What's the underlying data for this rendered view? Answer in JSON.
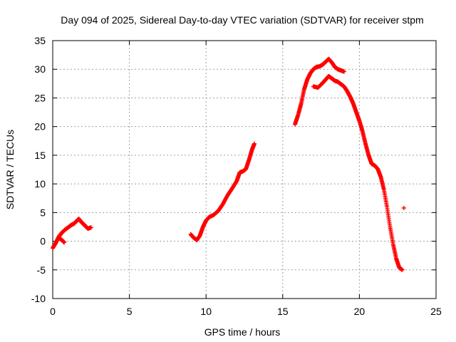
{
  "chart_data": {
    "type": "scatter",
    "title": "Day 094 of 2025, Sidereal Day-to-day VTEC variation (SDTVAR) for receiver stpm",
    "xlabel": "GPS time / hours",
    "ylabel": "SDTVAR / TECUs",
    "xlim": [
      0,
      25
    ],
    "ylim": [
      -10,
      35
    ],
    "xticks": [
      0,
      5,
      10,
      15,
      20,
      25
    ],
    "yticks": [
      -10,
      -5,
      0,
      5,
      10,
      15,
      20,
      25,
      30,
      35
    ],
    "grid": true,
    "marker": "+",
    "marker_color": "#ff0000",
    "series": [
      {
        "name": "SDTVAR",
        "segments": [
          [
            [
              0.0,
              -1.2
            ],
            [
              0.2,
              -0.3
            ],
            [
              0.4,
              0.8
            ],
            [
              0.6,
              1.5
            ],
            [
              0.8,
              2.0
            ],
            [
              1.0,
              2.4
            ],
            [
              1.2,
              2.8
            ],
            [
              1.4,
              3.1
            ],
            [
              1.55,
              3.5
            ],
            [
              1.7,
              3.9
            ],
            [
              1.85,
              3.4
            ],
            [
              2.0,
              3.0
            ],
            [
              2.15,
              2.6
            ],
            [
              2.3,
              2.2
            ],
            [
              2.5,
              2.4
            ]
          ],
          [
            [
              0.45,
              0.5
            ],
            [
              0.6,
              0.2
            ],
            [
              0.75,
              -0.2
            ]
          ],
          [
            [
              9.0,
              1.2
            ],
            [
              9.2,
              0.6
            ],
            [
              9.4,
              0.2
            ],
            [
              9.6,
              1.0
            ],
            [
              9.8,
              2.5
            ],
            [
              10.0,
              3.6
            ],
            [
              10.2,
              4.2
            ],
            [
              10.5,
              4.6
            ],
            [
              10.8,
              5.3
            ],
            [
              11.1,
              6.5
            ],
            [
              11.4,
              8.0
            ],
            [
              11.7,
              9.2
            ],
            [
              12.0,
              10.5
            ],
            [
              12.2,
              12.0
            ],
            [
              12.4,
              12.2
            ],
            [
              12.6,
              12.6
            ],
            [
              12.8,
              14.2
            ],
            [
              13.0,
              16.0
            ],
            [
              13.15,
              17.0
            ]
          ],
          [
            [
              15.8,
              20.4
            ],
            [
              16.0,
              22.0
            ],
            [
              16.2,
              24.0
            ],
            [
              16.4,
              26.5
            ],
            [
              16.6,
              28.2
            ],
            [
              16.8,
              29.3
            ],
            [
              17.0,
              30.0
            ],
            [
              17.2,
              30.4
            ],
            [
              17.4,
              30.5
            ],
            [
              17.6,
              30.8
            ],
            [
              17.8,
              31.3
            ],
            [
              18.0,
              31.8
            ],
            [
              18.2,
              31.2
            ],
            [
              18.4,
              30.4
            ],
            [
              18.6,
              30.0
            ],
            [
              18.8,
              29.8
            ],
            [
              19.0,
              29.6
            ]
          ],
          [
            [
              17.0,
              27.0
            ],
            [
              17.3,
              26.8
            ],
            [
              17.6,
              27.6
            ],
            [
              17.8,
              28.2
            ],
            [
              18.0,
              28.8
            ],
            [
              18.2,
              28.4
            ],
            [
              18.4,
              28.0
            ],
            [
              18.6,
              27.8
            ],
            [
              18.8,
              27.4
            ],
            [
              19.0,
              27.0
            ],
            [
              19.2,
              26.2
            ],
            [
              19.4,
              25.2
            ],
            [
              19.6,
              24.0
            ],
            [
              19.8,
              22.5
            ],
            [
              20.0,
              21.0
            ],
            [
              20.2,
              19.2
            ],
            [
              20.4,
              17.0
            ],
            [
              20.6,
              15.0
            ],
            [
              20.8,
              13.5
            ],
            [
              21.0,
              13.2
            ],
            [
              21.2,
              12.6
            ],
            [
              21.4,
              11.2
            ],
            [
              21.6,
              9.0
            ],
            [
              21.8,
              6.0
            ],
            [
              22.0,
              2.5
            ],
            [
              22.2,
              -0.5
            ],
            [
              22.4,
              -3.0
            ],
            [
              22.6,
              -4.6
            ],
            [
              22.8,
              -5.0
            ]
          ]
        ],
        "isolated": [
          [
            22.9,
            5.8
          ]
        ]
      }
    ]
  }
}
